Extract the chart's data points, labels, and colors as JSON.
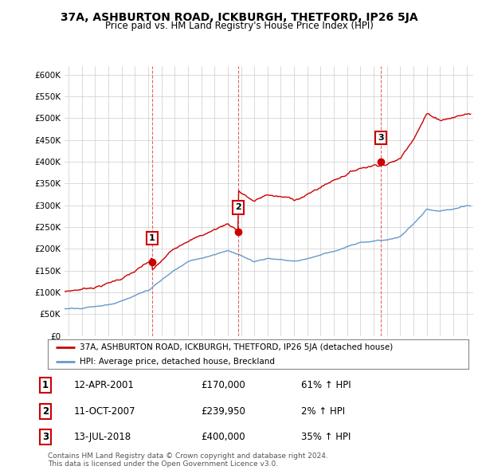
{
  "title": "37A, ASHBURTON ROAD, ICKBURGH, THETFORD, IP26 5JA",
  "subtitle": "Price paid vs. HM Land Registry's House Price Index (HPI)",
  "sale_display": [
    {
      "num": "1",
      "date": "12-APR-2001",
      "price": "£170,000",
      "info": "61% ↑ HPI"
    },
    {
      "num": "2",
      "date": "11-OCT-2007",
      "price": "£239,950",
      "info": "2% ↑ HPI"
    },
    {
      "num": "3",
      "date": "13-JUL-2018",
      "price": "£400,000",
      "info": "35% ↑ HPI"
    }
  ],
  "legend_red": "37A, ASHBURTON ROAD, ICKBURGH, THETFORD, IP26 5JA (detached house)",
  "legend_blue": "HPI: Average price, detached house, Breckland",
  "footer": "Contains HM Land Registry data © Crown copyright and database right 2024.\nThis data is licensed under the Open Government Licence v3.0.",
  "red_color": "#cc0000",
  "blue_color": "#6699cc",
  "ylim": [
    0,
    620000
  ],
  "yticks": [
    0,
    50000,
    100000,
    150000,
    200000,
    250000,
    300000,
    350000,
    400000,
    450000,
    500000,
    550000,
    600000
  ],
  "xlim_start": 1994.7,
  "xlim_end": 2025.5,
  "background": "#ffffff",
  "grid_color": "#cccccc",
  "sale1_year": 2001.29,
  "sale1_price": 170000,
  "sale2_year": 2007.79,
  "sale2_price": 239950,
  "sale3_year": 2018.54,
  "sale3_price": 400000
}
